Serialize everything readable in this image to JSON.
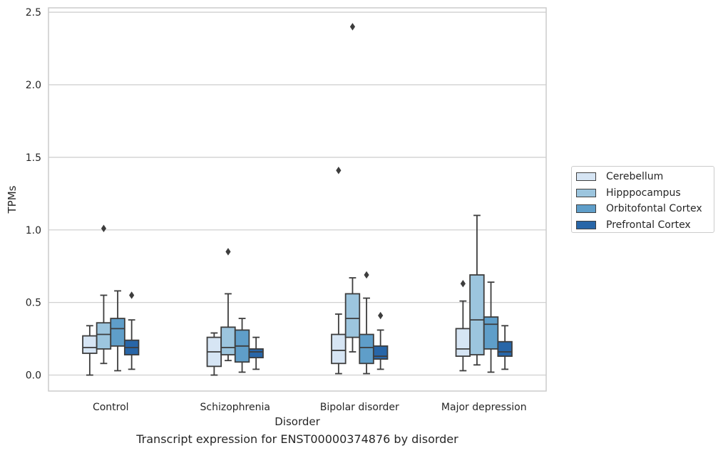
{
  "chart_data": {
    "type": "box",
    "title": "Transcript expression for ENST00000374876 by disorder",
    "xlabel": "Disorder",
    "ylabel": "TPMs",
    "ylim": [
      -0.11,
      2.53
    ],
    "yticks": [
      0.0,
      0.5,
      1.0,
      1.5,
      2.0,
      2.5
    ],
    "ytick_labels": [
      "0.0",
      "0.5",
      "1.0",
      "1.5",
      "2.0",
      "2.5"
    ],
    "categories": [
      "Control",
      "Schizophrenia",
      "Bipolar disorder",
      "Major depression"
    ],
    "grid": "horizontal",
    "legend_position": "right",
    "series": [
      {
        "name": "Cerebellum",
        "color": "#d6e5f4",
        "boxes": [
          {
            "whislo": 0.0,
            "q1": 0.15,
            "med": 0.19,
            "q3": 0.27,
            "whishi": 0.34,
            "fliers": []
          },
          {
            "whislo": 0.0,
            "q1": 0.06,
            "med": 0.16,
            "q3": 0.26,
            "whishi": 0.29,
            "fliers": []
          },
          {
            "whislo": 0.01,
            "q1": 0.08,
            "med": 0.17,
            "q3": 0.28,
            "whishi": 0.42,
            "fliers": [
              1.41
            ]
          },
          {
            "whislo": 0.03,
            "q1": 0.13,
            "med": 0.18,
            "q3": 0.32,
            "whishi": 0.51,
            "fliers": [
              0.63
            ]
          }
        ]
      },
      {
        "name": "Hipppocampus",
        "color": "#9cc5de",
        "boxes": [
          {
            "whislo": 0.08,
            "q1": 0.18,
            "med": 0.28,
            "q3": 0.36,
            "whishi": 0.55,
            "fliers": [
              1.01
            ]
          },
          {
            "whislo": 0.1,
            "q1": 0.14,
            "med": 0.19,
            "q3": 0.33,
            "whishi": 0.56,
            "fliers": [
              0.85
            ]
          },
          {
            "whislo": 0.16,
            "q1": 0.26,
            "med": 0.39,
            "q3": 0.56,
            "whishi": 0.67,
            "fliers": [
              2.4
            ]
          },
          {
            "whislo": 0.07,
            "q1": 0.14,
            "med": 0.38,
            "q3": 0.69,
            "whishi": 1.1,
            "fliers": []
          }
        ]
      },
      {
        "name": "Orbitofontal Cortex",
        "color": "#5f9ec9",
        "boxes": [
          {
            "whislo": 0.03,
            "q1": 0.2,
            "med": 0.32,
            "q3": 0.39,
            "whishi": 0.58,
            "fliers": []
          },
          {
            "whislo": 0.02,
            "q1": 0.09,
            "med": 0.2,
            "q3": 0.31,
            "whishi": 0.39,
            "fliers": []
          },
          {
            "whislo": 0.01,
            "q1": 0.08,
            "med": 0.19,
            "q3": 0.28,
            "whishi": 0.53,
            "fliers": [
              0.69
            ]
          },
          {
            "whislo": 0.02,
            "q1": 0.18,
            "med": 0.35,
            "q3": 0.4,
            "whishi": 0.64,
            "fliers": []
          }
        ]
      },
      {
        "name": "Prefrontal Cortex",
        "color": "#2866a8",
        "boxes": [
          {
            "whislo": 0.04,
            "q1": 0.14,
            "med": 0.19,
            "q3": 0.24,
            "whishi": 0.38,
            "fliers": [
              0.55
            ]
          },
          {
            "whislo": 0.04,
            "q1": 0.12,
            "med": 0.16,
            "q3": 0.18,
            "whishi": 0.26,
            "fliers": []
          },
          {
            "whislo": 0.04,
            "q1": 0.11,
            "med": 0.13,
            "q3": 0.2,
            "whishi": 0.31,
            "fliers": [
              0.41
            ]
          },
          {
            "whislo": 0.04,
            "q1": 0.13,
            "med": 0.16,
            "q3": 0.23,
            "whishi": 0.34,
            "fliers": []
          }
        ]
      }
    ]
  }
}
